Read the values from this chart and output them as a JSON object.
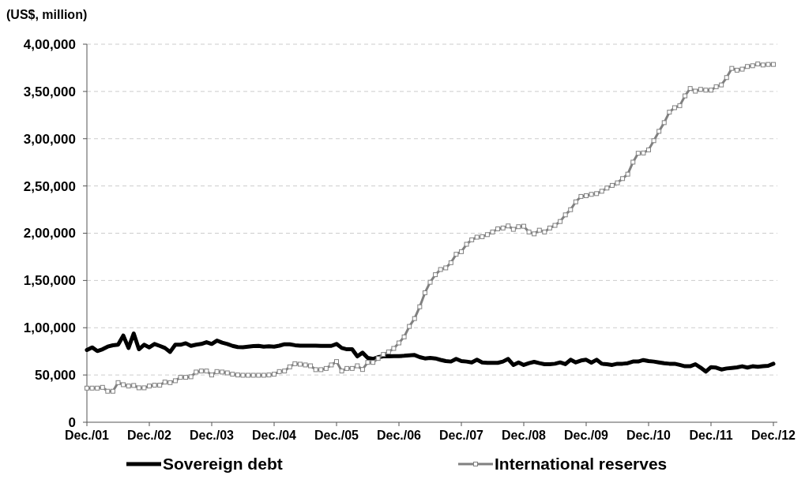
{
  "chart_data": {
    "type": "line",
    "ylabel": "(US$, million)",
    "categories": [
      "Dec./01",
      null,
      null,
      null,
      null,
      null,
      null,
      null,
      null,
      null,
      null,
      null,
      "Dec./02",
      null,
      null,
      null,
      null,
      null,
      null,
      null,
      null,
      null,
      null,
      null,
      "Dec./03",
      null,
      null,
      null,
      null,
      null,
      null,
      null,
      null,
      null,
      null,
      null,
      "Dec./04",
      null,
      null,
      null,
      null,
      null,
      null,
      null,
      null,
      null,
      null,
      null,
      "Dec./05",
      null,
      null,
      null,
      null,
      null,
      null,
      null,
      null,
      null,
      null,
      null,
      "Dec./06",
      null,
      null,
      null,
      null,
      null,
      null,
      null,
      null,
      null,
      null,
      null,
      "Dec./07",
      null,
      null,
      null,
      null,
      null,
      null,
      null,
      null,
      null,
      null,
      null,
      "Dec./08",
      null,
      null,
      null,
      null,
      null,
      null,
      null,
      null,
      null,
      null,
      null,
      "Dec./09",
      null,
      null,
      null,
      null,
      null,
      null,
      null,
      null,
      null,
      null,
      null,
      "Dec./10",
      null,
      null,
      null,
      null,
      null,
      null,
      null,
      null,
      null,
      null,
      null,
      "Dec./11",
      null,
      null,
      null,
      null,
      null,
      null,
      null,
      null,
      null,
      null,
      null,
      "Dec./12"
    ],
    "series": [
      {
        "name": "Sovereign debt",
        "color": "#000000",
        "marker": "none",
        "values": [
          76400,
          79200,
          75300,
          77200,
          80000,
          81400,
          82000,
          91700,
          78600,
          93900,
          77200,
          82000,
          79200,
          82800,
          80800,
          78600,
          74400,
          82000,
          82000,
          83600,
          80800,
          82000,
          82800,
          84700,
          82800,
          86400,
          84200,
          82800,
          80800,
          79500,
          79400,
          80000,
          80500,
          80800,
          80000,
          80300,
          80000,
          81000,
          82500,
          82500,
          81500,
          81000,
          81000,
          81000,
          81000,
          80800,
          80800,
          80800,
          82800,
          78600,
          77200,
          77200,
          69700,
          73600,
          68100,
          67000,
          68900,
          69700,
          69700,
          70000,
          70000,
          70300,
          70800,
          71100,
          68900,
          67500,
          68100,
          67500,
          66000,
          64700,
          64200,
          67000,
          64700,
          64200,
          63300,
          66100,
          63300,
          62800,
          62800,
          62800,
          64200,
          67000,
          60600,
          63300,
          60600,
          62500,
          63900,
          62500,
          61400,
          61400,
          61900,
          63300,
          61400,
          66100,
          63300,
          65300,
          66100,
          63100,
          66100,
          61900,
          61400,
          60600,
          61900,
          61900,
          62500,
          64200,
          64200,
          65800,
          64700,
          64200,
          63300,
          62500,
          61900,
          61900,
          60600,
          59200,
          59200,
          61400,
          57800,
          53600,
          58300,
          57800,
          55800,
          56900,
          57500,
          58100,
          59200,
          57800,
          59200,
          58600,
          59200,
          59700,
          61900
        ]
      },
      {
        "name": "International reserves",
        "color": "#808080",
        "marker": "square",
        "values": [
          36100,
          36100,
          36100,
          36900,
          32800,
          32800,
          41900,
          39700,
          38300,
          38900,
          36400,
          36400,
          38300,
          39200,
          39200,
          42500,
          41900,
          43900,
          47500,
          47500,
          48100,
          53100,
          54200,
          54200,
          50000,
          53600,
          53100,
          52200,
          50800,
          50000,
          49700,
          49700,
          49700,
          49700,
          49700,
          50000,
          50800,
          53600,
          54200,
          58600,
          61900,
          61400,
          60600,
          59700,
          55600,
          55600,
          56900,
          60600,
          64200,
          54200,
          56900,
          56900,
          59700,
          55800,
          63300,
          63300,
          67500,
          71700,
          74400,
          78100,
          83900,
          90300,
          101400,
          109700,
          122200,
          137000,
          148100,
          156100,
          161600,
          163300,
          168800,
          177700,
          180500,
          188300,
          193000,
          195800,
          196300,
          198500,
          201300,
          204600,
          205500,
          207700,
          204100,
          206900,
          207400,
          201300,
          199300,
          203200,
          201300,
          205500,
          208300,
          212400,
          219400,
          224900,
          233200,
          238900,
          239700,
          241100,
          241900,
          244400,
          247800,
          250600,
          253300,
          257800,
          262500,
          275200,
          284600,
          284900,
          288200,
          297900,
          307800,
          317000,
          328100,
          332800,
          335000,
          345300,
          353100,
          350300,
          352200,
          351400,
          351400,
          355000,
          356900,
          364700,
          374400,
          372500,
          373600,
          376400,
          377200,
          379100,
          378000,
          378600,
          378600
        ]
      }
    ],
    "ylim": [
      0,
      400000
    ],
    "yticks": [
      0,
      {
        "value": 50000,
        "label": "50,000"
      },
      {
        "value": 100000,
        "label": "1,00,000"
      },
      {
        "value": 150000,
        "label": "1,50,000"
      },
      {
        "value": 200000,
        "label": "2,00,000"
      },
      {
        "value": 250000,
        "label": "2,50,000"
      },
      {
        "value": 300000,
        "label": "3,00,000"
      },
      {
        "value": 350000,
        "label": "3,50,000"
      },
      {
        "value": 400000,
        "label": "4,00,000"
      }
    ],
    "grid": "y",
    "legend": "bottom"
  }
}
